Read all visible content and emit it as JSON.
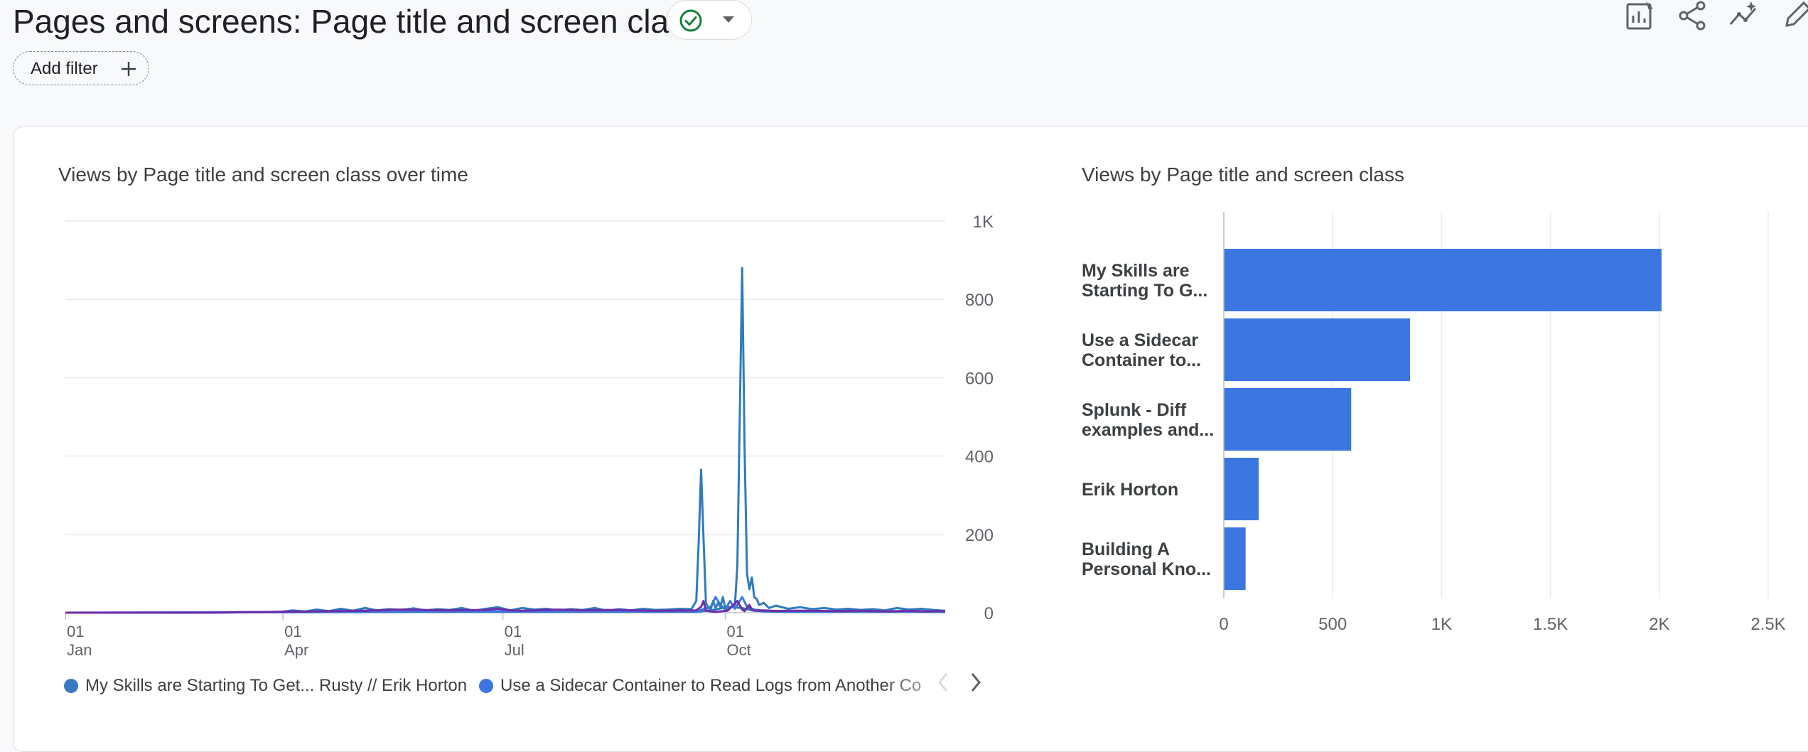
{
  "header": {
    "title": "Pages and screens: Page title and screen class",
    "add_filter_label": "Add filter",
    "status_icon": "check-circle-icon",
    "toolbar_icons": [
      "customize-report-icon",
      "share-icon",
      "insights-icon",
      "edit-icon"
    ]
  },
  "line_card": {
    "title": "Views by Page title and screen class over time",
    "legend": [
      {
        "label": "My Skills are Starting To Get... Rusty // Erik Horton",
        "color": "#3b78c3"
      },
      {
        "label": "Use a Sidecar Container to Read Logs from Another Co",
        "color": "#3f74e3"
      }
    ]
  },
  "bar_card": {
    "title": "Views by Page title and screen class"
  },
  "colors": {
    "series_1": "#2f7bbd",
    "series_2": "#3f74e3",
    "series_3": "#6f2da8",
    "series_4": "#8e24aa",
    "bar": "#3b76e1"
  },
  "chart_data": [
    {
      "type": "line",
      "title": "Views by Page title and screen class over time",
      "x_ticks": [
        {
          "day": "01",
          "month": "Jan"
        },
        {
          "day": "01",
          "month": "Apr"
        },
        {
          "day": "01",
          "month": "Jul"
        },
        {
          "day": "01",
          "month": "Oct"
        }
      ],
      "y_ticks": [
        "1K",
        "800",
        "600",
        "400",
        "200",
        "0"
      ],
      "ylim": [
        0,
        1000
      ],
      "grid": true,
      "legend_position": "bottom",
      "series": [
        {
          "name": "My Skills are Starting To Get... Rusty // Erik Horton",
          "points": [
            [
              1,
              0
            ],
            [
              60,
              0
            ],
            [
              100,
              3
            ],
            [
              125,
              5
            ],
            [
              140,
              8
            ],
            [
              160,
              6
            ],
            [
              175,
              7
            ],
            [
              180,
              10
            ],
            [
              185,
              6
            ],
            [
              190,
              5
            ],
            [
              205,
              8
            ],
            [
              215,
              6
            ],
            [
              225,
              7
            ],
            [
              245,
              5
            ],
            [
              262,
              6
            ],
            [
              264,
              15
            ],
            [
              265,
              30
            ],
            [
              266,
              5
            ],
            [
              268,
              3
            ],
            [
              270,
              2
            ],
            [
              275,
              5
            ],
            [
              279,
              30
            ],
            [
              281,
              8
            ],
            [
              282,
              4
            ],
            [
              284,
              20
            ],
            [
              285,
              8
            ],
            [
              286,
              5
            ],
            [
              290,
              6
            ],
            [
              295,
              4
            ],
            [
              300,
              5
            ],
            [
              310,
              5
            ],
            [
              320,
              4
            ],
            [
              330,
              5
            ],
            [
              340,
              3
            ],
            [
              350,
              5
            ],
            [
              358,
              3
            ],
            [
              362,
              4
            ],
            [
              365,
              3
            ]
          ]
        },
        {
          "name": "Use a Sidecar Container to Read Logs from Another Co",
          "points": [
            [
              1,
              0
            ],
            [
              60,
              0
            ],
            [
              90,
              2
            ],
            [
              95,
              6
            ],
            [
              100,
              3
            ],
            [
              105,
              8
            ],
            [
              110,
              4
            ],
            [
              115,
              10
            ],
            [
              120,
              5
            ],
            [
              125,
              12
            ],
            [
              130,
              6
            ],
            [
              135,
              9
            ],
            [
              140,
              7
            ],
            [
              145,
              11
            ],
            [
              150,
              6
            ],
            [
              155,
              9
            ],
            [
              160,
              7
            ],
            [
              165,
              12
            ],
            [
              170,
              5
            ],
            [
              175,
              10
            ],
            [
              180,
              14
            ],
            [
              185,
              6
            ],
            [
              190,
              12
            ],
            [
              195,
              8
            ],
            [
              200,
              10
            ],
            [
              205,
              6
            ],
            [
              210,
              9
            ],
            [
              215,
              7
            ],
            [
              220,
              12
            ],
            [
              225,
              5
            ],
            [
              230,
              9
            ],
            [
              235,
              6
            ],
            [
              240,
              10
            ],
            [
              245,
              7
            ],
            [
              250,
              8
            ],
            [
              255,
              10
            ],
            [
              260,
              9
            ],
            [
              262,
              30
            ],
            [
              263,
              180
            ],
            [
              264,
              365
            ],
            [
              265,
              190
            ],
            [
              266,
              25
            ],
            [
              267,
              12
            ],
            [
              268,
              10
            ],
            [
              269,
              30
            ],
            [
              270,
              12
            ],
            [
              271,
              25
            ],
            [
              272,
              15
            ],
            [
              273,
              40
            ],
            [
              274,
              12
            ],
            [
              275,
              8
            ],
            [
              276,
              12
            ],
            [
              278,
              20
            ],
            [
              279,
              120
            ],
            [
              280,
              500
            ],
            [
              281,
              880
            ],
            [
              282,
              420
            ],
            [
              283,
              100
            ],
            [
              284,
              60
            ],
            [
              285,
              90
            ],
            [
              286,
              40
            ],
            [
              287,
              35
            ],
            [
              288,
              20
            ],
            [
              290,
              25
            ],
            [
              292,
              12
            ],
            [
              295,
              18
            ],
            [
              300,
              10
            ],
            [
              305,
              14
            ],
            [
              310,
              9
            ],
            [
              315,
              12
            ],
            [
              320,
              8
            ],
            [
              325,
              10
            ],
            [
              330,
              7
            ],
            [
              335,
              9
            ],
            [
              340,
              6
            ],
            [
              345,
              12
            ],
            [
              350,
              8
            ],
            [
              355,
              10
            ],
            [
              360,
              7
            ],
            [
              365,
              5
            ]
          ]
        },
        {
          "name": "",
          "points": [
            [
              1,
              0
            ],
            [
              100,
              2
            ],
            [
              150,
              4
            ],
            [
              200,
              3
            ],
            [
              250,
              4
            ],
            [
              262,
              3
            ],
            [
              268,
              15
            ],
            [
              270,
              40
            ],
            [
              272,
              20
            ],
            [
              274,
              8
            ],
            [
              276,
              30
            ],
            [
              278,
              10
            ],
            [
              281,
              40
            ],
            [
              283,
              15
            ],
            [
              286,
              8
            ],
            [
              290,
              5
            ],
            [
              300,
              4
            ],
            [
              320,
              3
            ],
            [
              340,
              4
            ],
            [
              365,
              3
            ]
          ]
        },
        {
          "name": "",
          "points": [
            [
              1,
              0
            ],
            [
              100,
              1
            ],
            [
              150,
              2
            ],
            [
              200,
              2
            ],
            [
              250,
              2
            ],
            [
              262,
              2
            ],
            [
              270,
              8
            ],
            [
              275,
              15
            ],
            [
              281,
              12
            ],
            [
              285,
              6
            ],
            [
              290,
              3
            ],
            [
              300,
              2
            ],
            [
              330,
              2
            ],
            [
              365,
              2
            ]
          ]
        }
      ]
    },
    {
      "type": "bar",
      "orientation": "horizontal",
      "title": "Views by Page title and screen class",
      "categories": [
        [
          "My Skills are",
          "Starting To G..."
        ],
        [
          "Use a Sidecar",
          "Container to..."
        ],
        [
          "Splunk - Diff",
          "examples and..."
        ],
        [
          "Erik Horton"
        ],
        [
          "Building A",
          "Personal Kno..."
        ]
      ],
      "values": [
        2010,
        855,
        585,
        160,
        100
      ],
      "x_ticks": [
        "0",
        "500",
        "1K",
        "1.5K",
        "2K",
        "2.5K"
      ],
      "xlim": [
        0,
        2500
      ],
      "grid": true
    }
  ]
}
